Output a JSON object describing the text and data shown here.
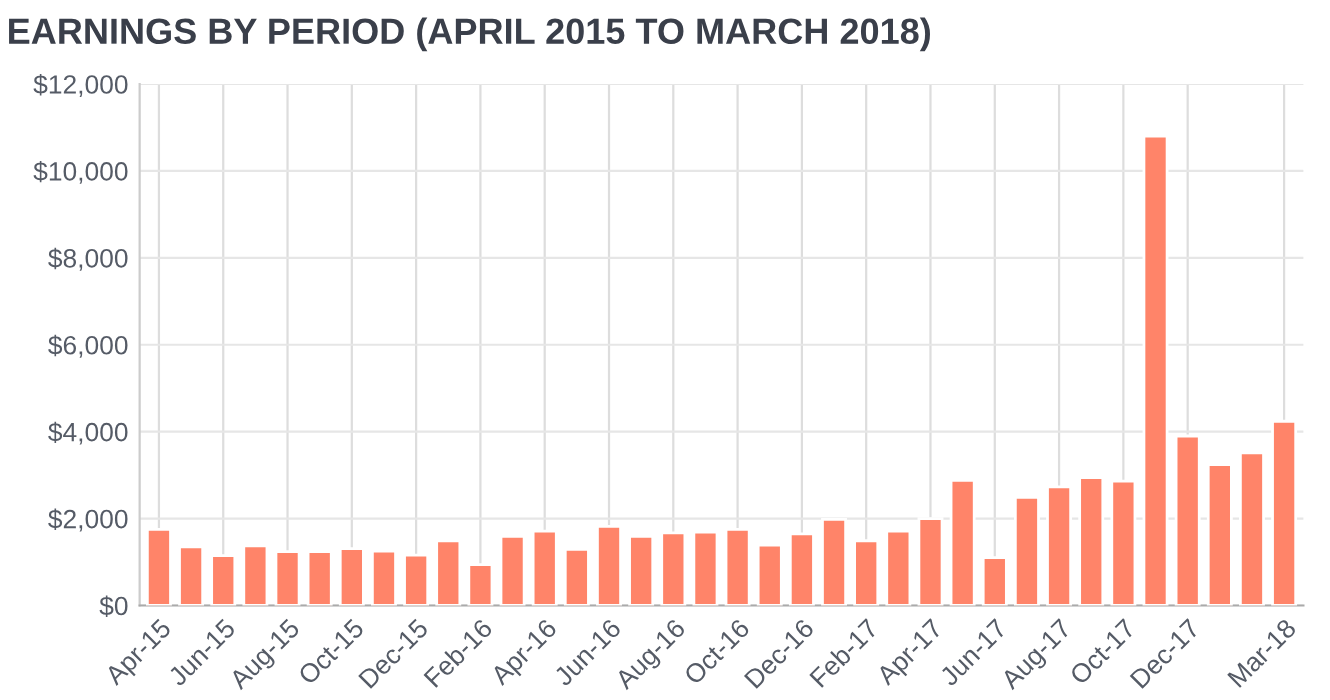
{
  "chart_data": {
    "type": "bar",
    "title": "EARNINGS BY PERIOD (APRIL 2015 TO MARCH 2018)",
    "categories": [
      "Apr-15",
      null,
      "Jun-15",
      null,
      "Aug-15",
      null,
      "Oct-15",
      null,
      "Dec-15",
      null,
      "Feb-16",
      null,
      "Apr-16",
      null,
      "Jun-16",
      null,
      "Aug-16",
      null,
      "Oct-16",
      null,
      "Dec-16",
      null,
      "Feb-17",
      null,
      "Apr-17",
      null,
      "Jun-17",
      null,
      "Aug-17",
      null,
      "Oct-17",
      null,
      "Dec-17",
      null,
      null,
      "Mar-18"
    ],
    "values": [
      1750,
      1350,
      1150,
      1370,
      1240,
      1240,
      1310,
      1250,
      1160,
      1490,
      940,
      1590,
      1710,
      1290,
      1820,
      1590,
      1670,
      1690,
      1750,
      1390,
      1650,
      1980,
      1490,
      1710,
      2000,
      2880,
      1100,
      2490,
      2730,
      2940,
      2860,
      10800,
      3900,
      3240,
      3510,
      4240
    ],
    "color": "#ff8469",
    "ylim": [
      0,
      12000
    ],
    "yticks": [
      {
        "value": 0,
        "label": "$0"
      },
      {
        "value": 2000,
        "label": "$2,000"
      },
      {
        "value": 4000,
        "label": "$4,000"
      },
      {
        "value": 6000,
        "label": "$6,000"
      },
      {
        "value": 8000,
        "label": "$8,000"
      },
      {
        "value": 10000,
        "label": "$10,000"
      },
      {
        "value": 12000,
        "label": "$12,000"
      }
    ],
    "grid": true
  }
}
